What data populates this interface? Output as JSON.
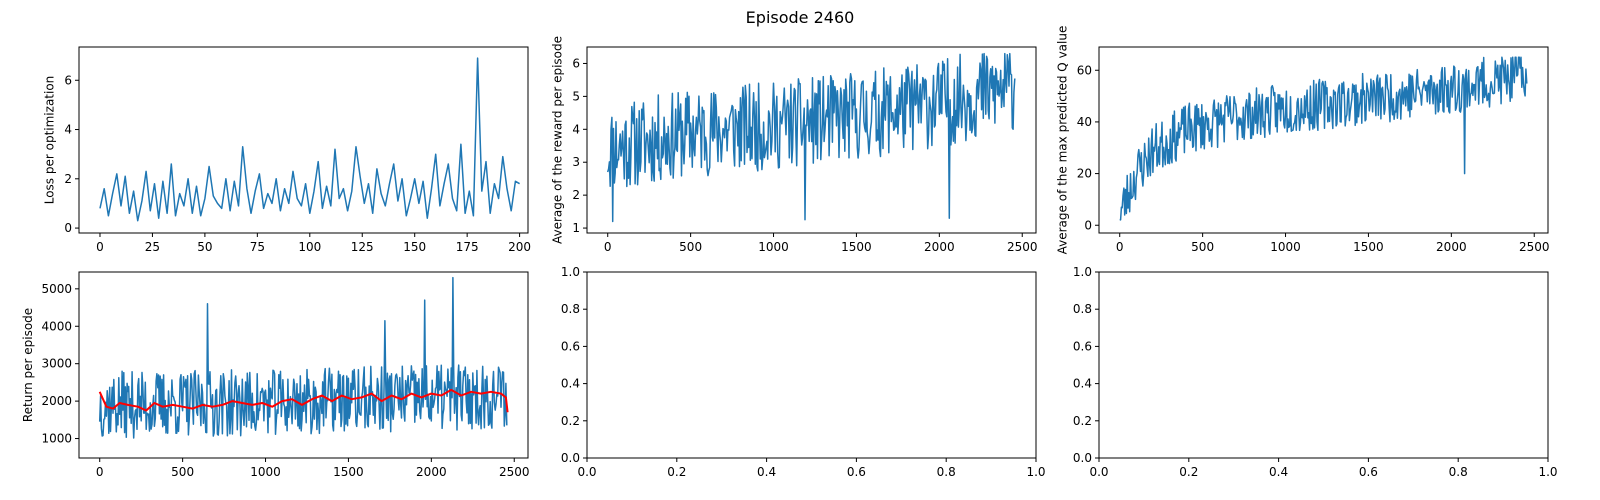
{
  "figure": {
    "title": "Episode 2460"
  },
  "chart_data": [
    {
      "id": "loss",
      "type": "line",
      "ylabel": "Loss per optimization",
      "xlim": [
        -10,
        204
      ],
      "ylim": [
        -0.2,
        7.35
      ],
      "xticks": [
        0,
        25,
        50,
        75,
        100,
        125,
        150,
        175,
        200
      ],
      "yticks": [
        0,
        2,
        4,
        6
      ],
      "x_start": 0,
      "x_step": 2,
      "series": [
        {
          "color": "#1f77b4",
          "values": [
            0.8,
            1.6,
            0.5,
            1.4,
            2.2,
            0.9,
            2.1,
            0.6,
            1.5,
            0.3,
            1.1,
            2.3,
            0.7,
            1.8,
            0.4,
            1.9,
            0.6,
            2.6,
            0.5,
            1.4,
            0.9,
            2.0,
            0.6,
            1.7,
            0.5,
            1.2,
            2.5,
            1.3,
            1.0,
            0.8,
            2.0,
            0.7,
            1.9,
            0.9,
            3.3,
            1.6,
            0.6,
            1.5,
            2.2,
            0.8,
            1.4,
            1.0,
            2.0,
            0.7,
            1.6,
            1.0,
            2.3,
            1.2,
            0.9,
            1.8,
            0.6,
            1.5,
            2.7,
            0.8,
            1.7,
            0.9,
            3.2,
            1.2,
            1.6,
            0.7,
            1.5,
            3.3,
            2.1,
            1.0,
            1.8,
            0.6,
            2.4,
            1.4,
            0.9,
            1.8,
            2.6,
            1.1,
            2.0,
            0.5,
            1.2,
            2.0,
            1.0,
            1.9,
            0.4,
            1.6,
            3.0,
            0.9,
            1.8,
            2.6,
            1.2,
            0.7,
            3.4,
            0.6,
            1.5,
            0.5,
            6.9,
            1.5,
            2.7,
            0.6,
            1.8,
            1.2,
            2.9,
            1.6,
            0.7,
            1.9,
            1.8
          ]
        }
      ]
    },
    {
      "id": "avg_reward",
      "type": "line",
      "ylabel": "Average of the reward per episode",
      "xlim": [
        -125,
        2583
      ],
      "ylim": [
        0.85,
        6.5
      ],
      "xticks": [
        0,
        500,
        1000,
        1500,
        2000,
        2500
      ],
      "yticks": [
        1,
        2,
        3,
        4,
        5,
        6
      ],
      "x_start": 0,
      "x_step": 5,
      "generated": {
        "n": 492,
        "seed": 11,
        "min": 1.1,
        "max": 6.3,
        "trend": [
          [
            0,
            3.4
          ],
          [
            500,
            3.9
          ],
          [
            1000,
            4.1
          ],
          [
            1500,
            4.4
          ],
          [
            2000,
            4.8
          ],
          [
            2460,
            5.3
          ]
        ],
        "spread": 1.35,
        "spikes": [
          [
            30,
            1.2
          ],
          [
            1190,
            1.25
          ],
          [
            2060,
            1.3
          ]
        ]
      },
      "series": [
        {
          "color": "#1f77b4"
        }
      ]
    },
    {
      "id": "max_q",
      "type": "line",
      "ylabel": "Average of the max predicted Q value",
      "xlim": [
        -125,
        2583
      ],
      "ylim": [
        -3,
        69
      ],
      "xticks": [
        0,
        500,
        1000,
        1500,
        2000,
        2500
      ],
      "yticks": [
        0,
        20,
        40,
        60
      ],
      "x_start": 0,
      "x_step": 5,
      "generated": {
        "n": 492,
        "seed": 23,
        "min": 2,
        "max": 65,
        "trend": [
          [
            0,
            4
          ],
          [
            100,
            20
          ],
          [
            200,
            29
          ],
          [
            400,
            37
          ],
          [
            700,
            42
          ],
          [
            1000,
            45
          ],
          [
            1500,
            49
          ],
          [
            2000,
            53
          ],
          [
            2460,
            58
          ]
        ],
        "spread": 10,
        "spikes": [
          [
            2080,
            20
          ]
        ]
      },
      "series": [
        {
          "color": "#1f77b4"
        }
      ]
    },
    {
      "id": "return",
      "type": "line",
      "ylabel": "Return per episode",
      "xlim": [
        -125,
        2583
      ],
      "ylim": [
        480,
        5450
      ],
      "xticks": [
        0,
        500,
        1000,
        1500,
        2000,
        2500
      ],
      "yticks": [
        1000,
        2000,
        3000,
        4000,
        5000
      ],
      "x_start": 0,
      "x_step": 5,
      "generated": {
        "n": 492,
        "seed": 37,
        "min": 650,
        "max": 5300,
        "trend": [
          [
            0,
            1900
          ],
          [
            1000,
            1950
          ],
          [
            2000,
            2100
          ],
          [
            2460,
            2150
          ]
        ],
        "spread": 900,
        "spikes": [
          [
            650,
            4600
          ],
          [
            2130,
            5300
          ],
          [
            1720,
            4150
          ],
          [
            1960,
            4700
          ]
        ]
      },
      "series": [
        {
          "color": "#1f77b4"
        },
        {
          "color": "#ff0000",
          "points": [
            [
              0,
              2250
            ],
            [
              40,
              1850
            ],
            [
              80,
              1800
            ],
            [
              120,
              1950
            ],
            [
              170,
              1900
            ],
            [
              230,
              1850
            ],
            [
              280,
              1750
            ],
            [
              330,
              1950
            ],
            [
              380,
              1850
            ],
            [
              440,
              1900
            ],
            [
              500,
              1850
            ],
            [
              560,
              1800
            ],
            [
              620,
              1900
            ],
            [
              680,
              1850
            ],
            [
              740,
              1900
            ],
            [
              800,
              2000
            ],
            [
              860,
              1950
            ],
            [
              920,
              1900
            ],
            [
              980,
              1950
            ],
            [
              1040,
              1850
            ],
            [
              1100,
              2000
            ],
            [
              1160,
              2050
            ],
            [
              1220,
              1900
            ],
            [
              1280,
              2050
            ],
            [
              1340,
              2150
            ],
            [
              1400,
              2000
            ],
            [
              1460,
              2150
            ],
            [
              1520,
              2050
            ],
            [
              1580,
              2100
            ],
            [
              1640,
              2200
            ],
            [
              1700,
              2000
            ],
            [
              1760,
              2150
            ],
            [
              1820,
              2050
            ],
            [
              1880,
              2200
            ],
            [
              1940,
              2100
            ],
            [
              2000,
              2200
            ],
            [
              2060,
              2150
            ],
            [
              2120,
              2300
            ],
            [
              2180,
              2150
            ],
            [
              2240,
              2250
            ],
            [
              2300,
              2200
            ],
            [
              2360,
              2250
            ],
            [
              2420,
              2200
            ],
            [
              2450,
              2100
            ],
            [
              2460,
              1700
            ]
          ]
        }
      ]
    },
    {
      "id": "empty_1",
      "type": "line",
      "xlim": [
        0,
        1
      ],
      "ylim": [
        0,
        1
      ],
      "xticks": [
        0.0,
        0.2,
        0.4,
        0.6,
        0.8,
        1.0
      ],
      "yticks": [
        0.0,
        0.2,
        0.4,
        0.6,
        0.8,
        1.0
      ],
      "tick_decimals": 1,
      "series": []
    },
    {
      "id": "empty_2",
      "type": "line",
      "xlim": [
        0,
        1
      ],
      "ylim": [
        0,
        1
      ],
      "xticks": [
        0.0,
        0.2,
        0.4,
        0.6,
        0.8,
        1.0
      ],
      "yticks": [
        0.0,
        0.2,
        0.4,
        0.6,
        0.8,
        1.0
      ],
      "tick_decimals": 1,
      "series": []
    }
  ]
}
